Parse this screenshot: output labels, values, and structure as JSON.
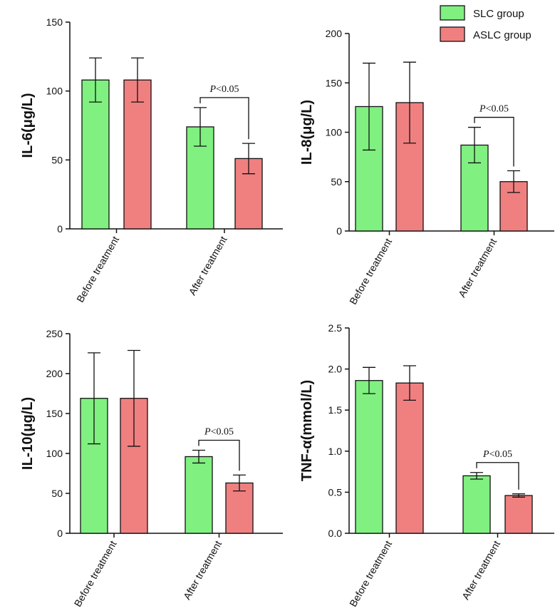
{
  "legend": {
    "items": [
      {
        "label": "SLC group",
        "color": "#80F080"
      },
      {
        "label": "ASLC group",
        "color": "#F08080"
      }
    ]
  },
  "chart_data": [
    {
      "type": "bar",
      "ylabel": "IL-6(μg/L)",
      "ylim": [
        0,
        150
      ],
      "yticks": [
        0,
        50,
        100,
        150
      ],
      "categories": [
        "Before treatment",
        "After treatment"
      ],
      "series": [
        {
          "name": "SLC group",
          "values": [
            108,
            74
          ],
          "errors": [
            16,
            14
          ]
        },
        {
          "name": "ASLC group",
          "values": [
            108,
            51
          ],
          "errors": [
            16,
            11
          ]
        }
      ],
      "annotation": {
        "category": "After treatment",
        "prefix": "P",
        "text": "<0.05"
      }
    },
    {
      "type": "bar",
      "ylabel": "IL-8(μg/L)",
      "ylim": [
        0,
        200
      ],
      "yticks": [
        0,
        50,
        100,
        150,
        200
      ],
      "categories": [
        "Before treatment",
        "After treatment"
      ],
      "series": [
        {
          "name": "SLC group",
          "values": [
            126,
            87
          ],
          "errors": [
            44,
            18
          ]
        },
        {
          "name": "ASLC group",
          "values": [
            130,
            50
          ],
          "errors": [
            41,
            11
          ]
        }
      ],
      "annotation": {
        "category": "After treatment",
        "prefix": "P",
        "text": "<0.05"
      }
    },
    {
      "type": "bar",
      "ylabel": "IL-10(μg/L)",
      "ylim": [
        0,
        250
      ],
      "yticks": [
        0,
        50,
        100,
        150,
        200,
        250
      ],
      "categories": [
        "Before treatment",
        "After treatment"
      ],
      "series": [
        {
          "name": "SLC group",
          "values": [
            169,
            96
          ],
          "errors": [
            57,
            8
          ]
        },
        {
          "name": "ASLC group",
          "values": [
            169,
            63
          ],
          "errors": [
            60,
            10
          ]
        }
      ],
      "annotation": {
        "category": "After treatment",
        "prefix": "P",
        "text": "<0.05"
      }
    },
    {
      "type": "bar",
      "ylabel": "TNF-α(mmol/L)",
      "ylim": [
        0,
        2.5
      ],
      "yticks": [
        "0.0",
        "0.5",
        "1.0",
        "1.5",
        "2.0",
        "2.5"
      ],
      "categories": [
        "Before treatment",
        "After treatment"
      ],
      "series": [
        {
          "name": "SLC group",
          "values": [
            1.86,
            0.7
          ],
          "errors": [
            0.16,
            0.04
          ]
        },
        {
          "name": "ASLC group",
          "values": [
            1.83,
            0.46
          ],
          "errors": [
            0.21,
            0.02
          ]
        }
      ],
      "annotation": {
        "category": "After treatment",
        "prefix": "P",
        "text": "<0.05"
      }
    }
  ]
}
